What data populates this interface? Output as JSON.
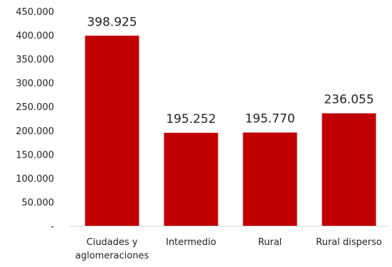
{
  "chart_data": {
    "type": "bar",
    "categories": [
      "Ciudades y aglomeraciones",
      "Intermedio",
      "Rural",
      "Rural disperso"
    ],
    "category_label_lines": [
      [
        "Ciudades y",
        "aglomeraciones"
      ],
      [
        "Intermedio"
      ],
      [
        "Rural"
      ],
      [
        "Rural disperso"
      ]
    ],
    "values": [
      398925,
      195252,
      195770,
      236055
    ],
    "data_labels": [
      "398.925",
      "195.252",
      "195.770",
      "236.055"
    ],
    "yticks": [
      0,
      50000,
      100000,
      150000,
      200000,
      250000,
      300000,
      350000,
      400000,
      450000
    ],
    "ytick_labels": [
      "-",
      "50.000",
      "100.000",
      "150.000",
      "200.000",
      "250.000",
      "300.000",
      "350.000",
      "400.000",
      "450.000"
    ],
    "ylim": [
      0,
      450000
    ],
    "title": "",
    "xlabel": "",
    "ylabel": "",
    "grid": false,
    "legend": "none",
    "bar_color": "#c00000",
    "axis_color": "#d9d9d9"
  }
}
